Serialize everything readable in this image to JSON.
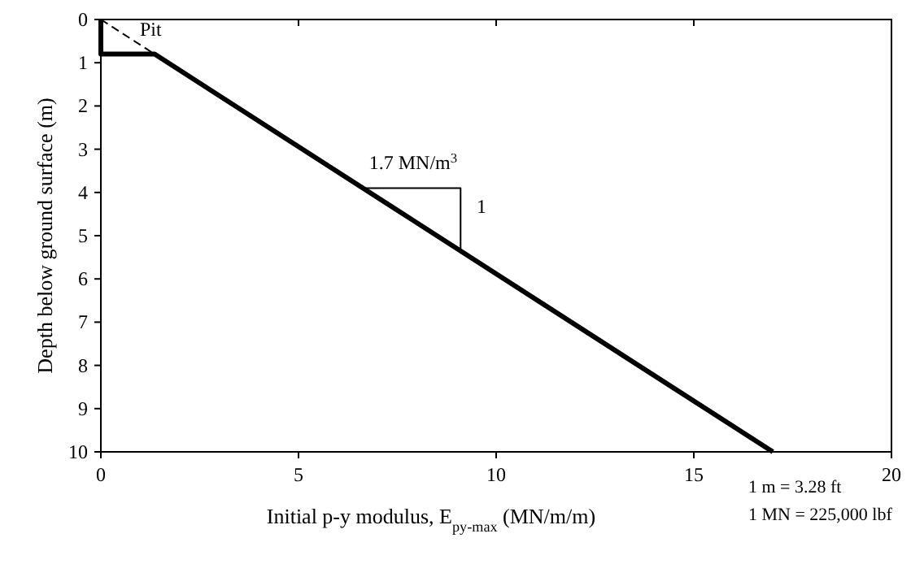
{
  "chart_data": {
    "type": "line",
    "xlabel": "Initial p-y modulus, E$_{py-max}$ (MN/m/m)",
    "ylabel": "Depth below ground surface (m)",
    "series": [
      {
        "color": "#000000",
        "x": [
          0,
          0,
          1.36,
          17
        ],
        "values": [
          0,
          0.8,
          0.8,
          10
        ]
      },
      {
        "color": "#000000",
        "x": [
          0,
          1.36
        ],
        "values": [
          0,
          0.8
        ],
        "line_style": "dashed"
      },
      {
        "color": "#000000",
        "x": [
          6.63,
          9.1,
          9.1
        ],
        "values": [
          3.9,
          3.9,
          5.35
        ]
      }
    ],
    "xlim": [
      0,
      20
    ],
    "xticks": [
      0,
      5,
      10,
      15,
      20
    ],
    "ylim": [
      10,
      0
    ],
    "yticks": [
      0,
      1,
      2,
      3,
      4,
      5,
      6,
      7,
      8,
      9,
      10
    ],
    "grid": false,
    "marker": "none",
    "line_style": "solid",
    "annotations": [
      "Pit",
      "1.7 MN/m$^{3}$",
      "1",
      "1 m = 3.28 ft",
      "1 MN = 225,000 lbf"
    ]
  }
}
